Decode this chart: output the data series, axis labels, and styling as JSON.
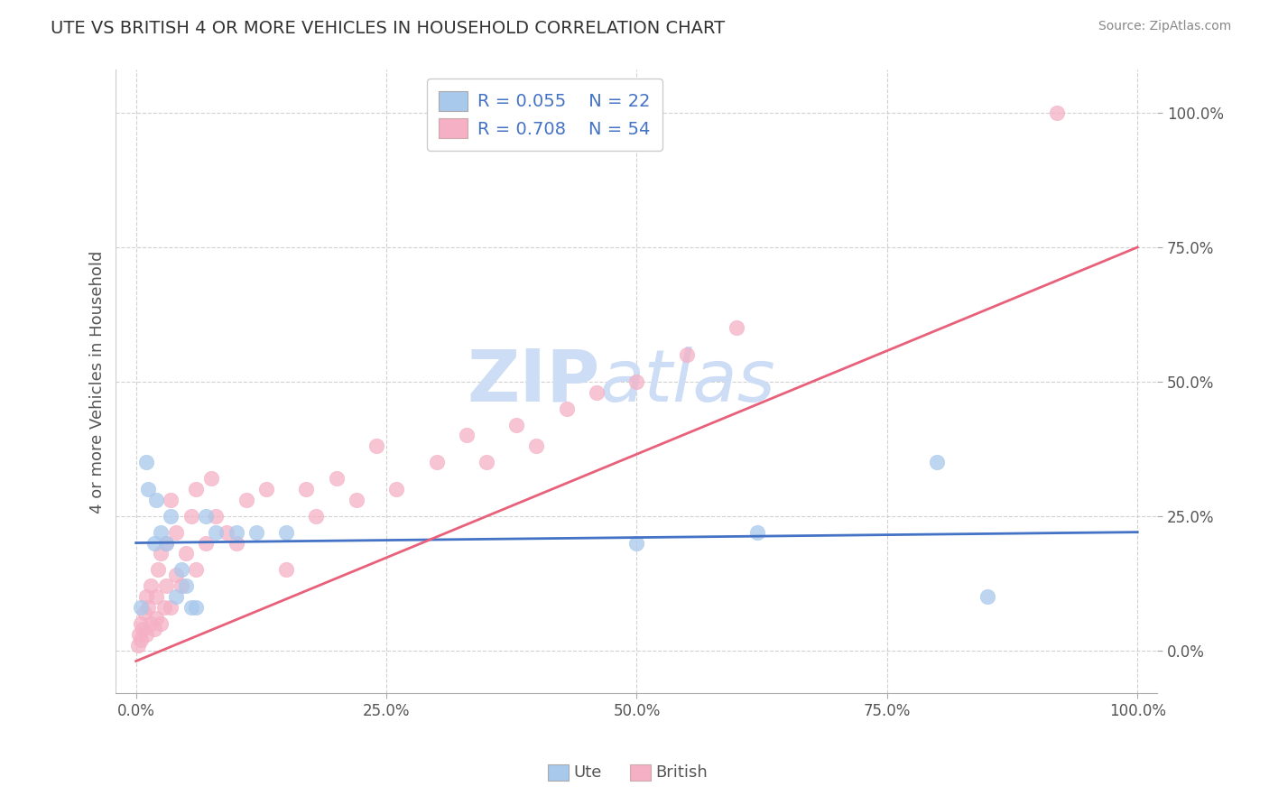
{
  "title": "UTE VS BRITISH 4 OR MORE VEHICLES IN HOUSEHOLD CORRELATION CHART",
  "source_text": "Source: ZipAtlas.com",
  "ylabel": "4 or more Vehicles in Household",
  "legend_label1": "Ute",
  "legend_label2": "British",
  "r1": 0.055,
  "n1": 22,
  "r2": 0.708,
  "n2": 54,
  "color1": "#a8c8ec",
  "color2": "#f5b0c5",
  "line_color1": "#4472c4",
  "line_color2": "#e8607a",
  "watermark_zip": "ZIP",
  "watermark_atlas": "atlas",
  "watermark_color": "#ccddf5",
  "ute_x": [
    0.5,
    1.0,
    1.2,
    2.0,
    2.5,
    3.0,
    3.5,
    4.0,
    5.0,
    5.5,
    6.0,
    7.0,
    8.0,
    10.0,
    12.0,
    15.0,
    50.0,
    62.0,
    80.0,
    85.0,
    1.8,
    4.5
  ],
  "ute_y": [
    8,
    35,
    30,
    28,
    22,
    20,
    25,
    10,
    12,
    8,
    8,
    25,
    22,
    22,
    22,
    22,
    20,
    22,
    35,
    10,
    20,
    15
  ],
  "british_x": [
    0.2,
    0.3,
    0.5,
    0.5,
    0.7,
    0.8,
    1.0,
    1.0,
    1.2,
    1.5,
    1.5,
    1.8,
    2.0,
    2.0,
    2.2,
    2.5,
    2.5,
    2.8,
    3.0,
    3.0,
    3.5,
    3.5,
    4.0,
    4.0,
    4.5,
    5.0,
    5.5,
    6.0,
    6.0,
    7.0,
    7.5,
    8.0,
    9.0,
    10.0,
    11.0,
    13.0,
    15.0,
    17.0,
    18.0,
    20.0,
    22.0,
    24.0,
    26.0,
    30.0,
    33.0,
    35.0,
    38.0,
    40.0,
    43.0,
    46.0,
    50.0,
    55.0,
    60.0,
    92.0
  ],
  "british_y": [
    1,
    3,
    2,
    5,
    4,
    7,
    3,
    10,
    8,
    5,
    12,
    4,
    10,
    6,
    15,
    5,
    18,
    8,
    12,
    20,
    8,
    28,
    14,
    22,
    12,
    18,
    25,
    15,
    30,
    20,
    32,
    25,
    22,
    20,
    28,
    30,
    15,
    30,
    25,
    32,
    28,
    38,
    30,
    35,
    40,
    35,
    42,
    38,
    45,
    48,
    50,
    55,
    60,
    100
  ],
  "xlim": [
    -2,
    102
  ],
  "ylim": [
    -8,
    108
  ],
  "xticks": [
    0,
    25,
    50,
    75,
    100
  ],
  "yticks": [
    0,
    25,
    50,
    75,
    100
  ],
  "xticklabels": [
    "0.0%",
    "25.0%",
    "50.0%",
    "75.0%",
    "100.0%"
  ],
  "yticklabels": [
    "0.0%",
    "25.0%",
    "50.0%",
    "75.0%",
    "100.0%"
  ]
}
